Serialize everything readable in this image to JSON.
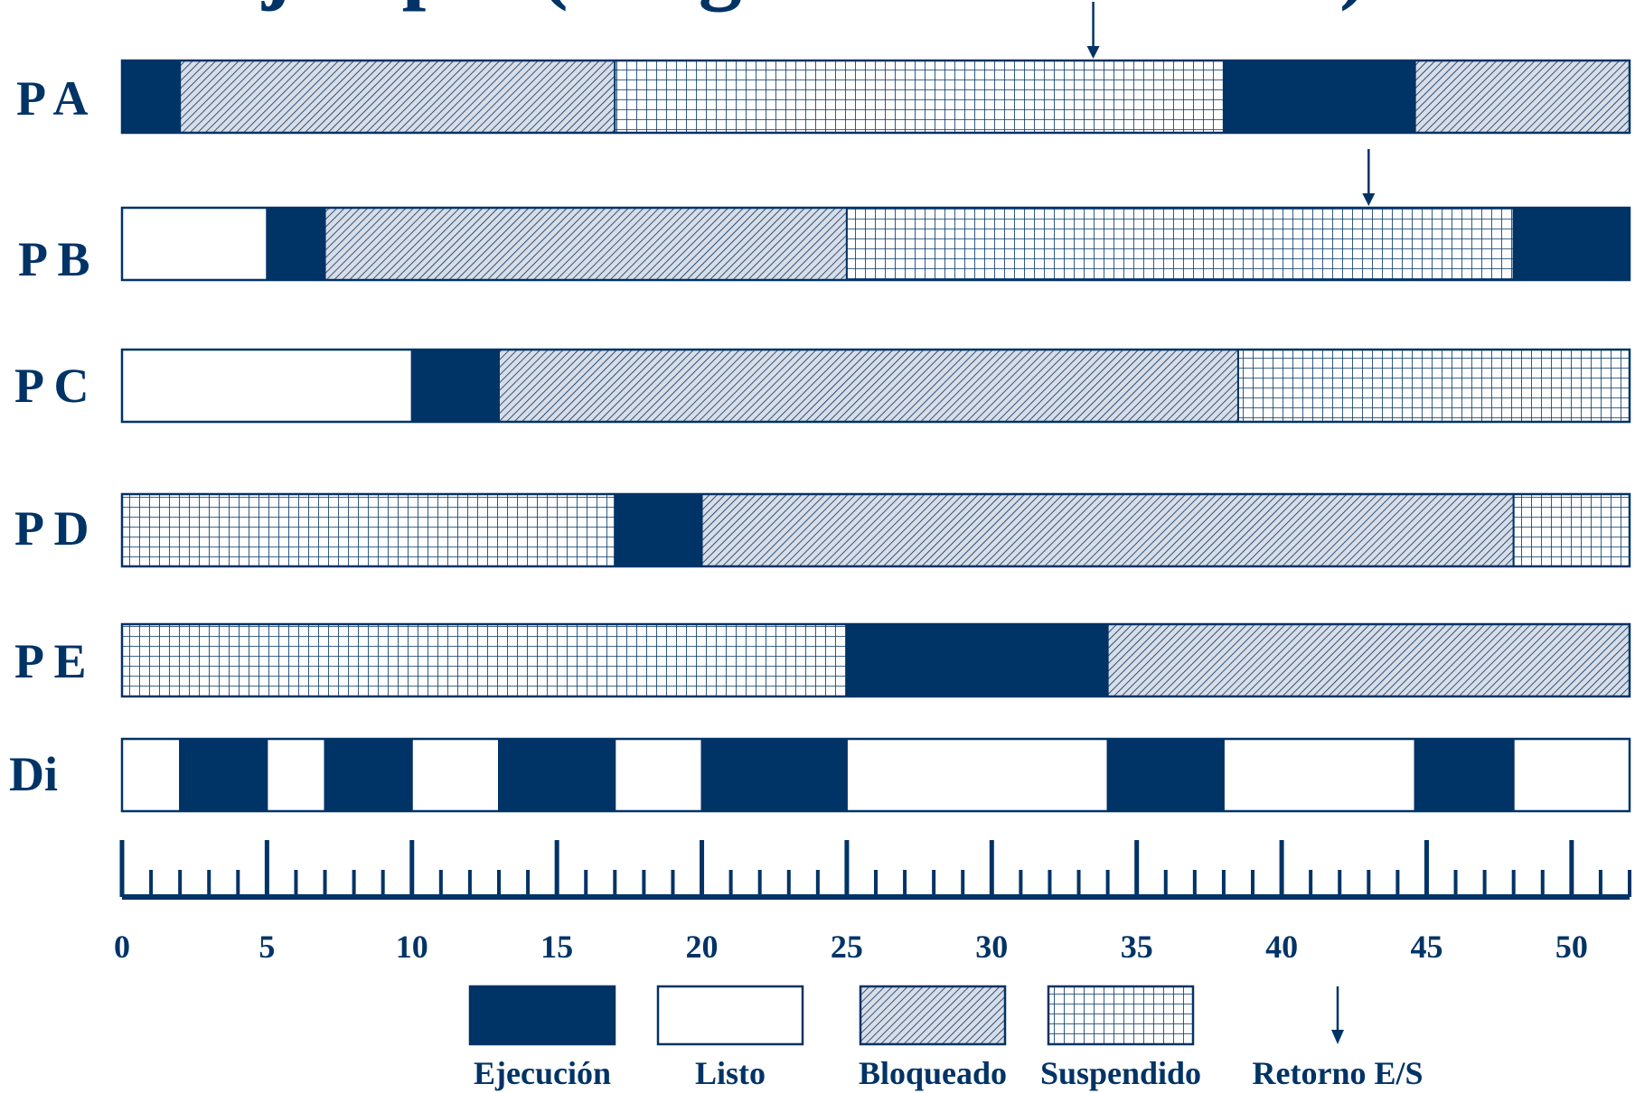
{
  "title": "Ejemplo (Diagrama de estados)",
  "colors": {
    "ejecucion": "#003366",
    "listo": "#ffffff",
    "pattern": "#003366",
    "pattern_bg": "#d9dde6"
  },
  "time_axis": {
    "min": 0,
    "max": 52,
    "labels": [
      "0",
      "5",
      "10",
      "15",
      "20",
      "25",
      "30",
      "35",
      "40",
      "45",
      "50"
    ]
  },
  "rows": [
    {
      "label": "P A",
      "segments": [
        {
          "state": "ejecucion",
          "start": 0,
          "end": 2
        },
        {
          "state": "bloqueado",
          "start": 2,
          "end": 17
        },
        {
          "state": "suspendido",
          "start": 17,
          "end": 38
        },
        {
          "state": "ejecucion",
          "start": 38,
          "end": 44.6
        },
        {
          "state": "bloqueado",
          "start": 44.6,
          "end": 52
        }
      ]
    },
    {
      "label": "P B",
      "segments": [
        {
          "state": "listo",
          "start": 0,
          "end": 5
        },
        {
          "state": "ejecucion",
          "start": 5,
          "end": 7
        },
        {
          "state": "bloqueado",
          "start": 7,
          "end": 25
        },
        {
          "state": "suspendido",
          "start": 25,
          "end": 48
        },
        {
          "state": "ejecucion",
          "start": 48,
          "end": 52
        }
      ]
    },
    {
      "label": "P C",
      "segments": [
        {
          "state": "listo",
          "start": 0,
          "end": 10
        },
        {
          "state": "ejecucion",
          "start": 10,
          "end": 13
        },
        {
          "state": "bloqueado",
          "start": 13,
          "end": 38.5
        },
        {
          "state": "suspendido",
          "start": 38.5,
          "end": 52
        }
      ]
    },
    {
      "label": "P D",
      "segments": [
        {
          "state": "suspendido",
          "start": 0,
          "end": 17
        },
        {
          "state": "ejecucion",
          "start": 17,
          "end": 20
        },
        {
          "state": "bloqueado",
          "start": 20,
          "end": 48
        },
        {
          "state": "suspendido",
          "start": 48,
          "end": 52
        }
      ]
    },
    {
      "label": "P E",
      "segments": [
        {
          "state": "suspendido",
          "start": 0,
          "end": 25
        },
        {
          "state": "ejecucion",
          "start": 25,
          "end": 34
        },
        {
          "state": "bloqueado",
          "start": 34,
          "end": 52
        }
      ]
    },
    {
      "label": "Di",
      "segments": [
        {
          "state": "listo",
          "start": 0,
          "end": 2
        },
        {
          "state": "ejecucion",
          "start": 2,
          "end": 5
        },
        {
          "state": "listo",
          "start": 5,
          "end": 7
        },
        {
          "state": "ejecucion",
          "start": 7,
          "end": 10
        },
        {
          "state": "listo",
          "start": 10,
          "end": 13
        },
        {
          "state": "ejecucion",
          "start": 13,
          "end": 17
        },
        {
          "state": "listo",
          "start": 17,
          "end": 20
        },
        {
          "state": "ejecucion",
          "start": 20,
          "end": 25
        },
        {
          "state": "listo",
          "start": 25,
          "end": 34
        },
        {
          "state": "ejecucion",
          "start": 34,
          "end": 38
        },
        {
          "state": "listo",
          "start": 38,
          "end": 44.6
        },
        {
          "state": "ejecucion",
          "start": 44.6,
          "end": 48
        },
        {
          "state": "listo",
          "start": 48,
          "end": 52
        }
      ]
    }
  ],
  "io_returns": [
    {
      "row": 0,
      "time": 33.5
    },
    {
      "row": 1,
      "time": 43
    }
  ],
  "legend": [
    {
      "state": "ejecucion",
      "label": "Ejecución"
    },
    {
      "state": "listo",
      "label": "Listo"
    },
    {
      "state": "bloqueado",
      "label": "Bloqueado"
    },
    {
      "state": "suspendido",
      "label": "Suspendido"
    },
    {
      "state": "arrow",
      "label": "Retorno E/S"
    }
  ]
}
